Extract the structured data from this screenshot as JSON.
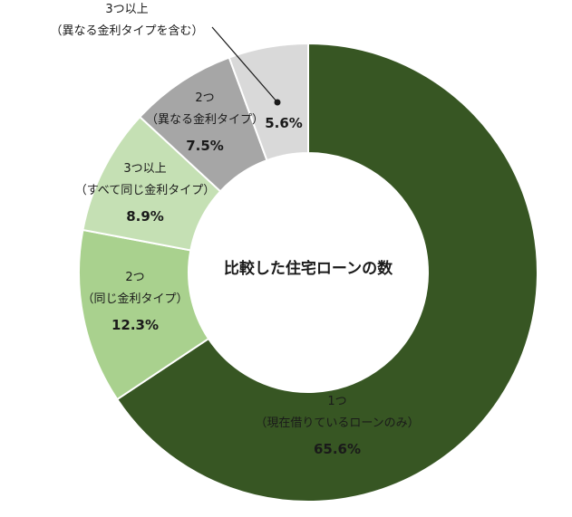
{
  "chart_data": {
    "type": "pie",
    "center_label": "比較した住宅ローンの数",
    "slices": [
      {
        "label_line1": "1つ",
        "label_line2": "（現在借りているローンのみ）",
        "value": 65.6,
        "value_label": "65.6%",
        "color": "#375623",
        "text_color": "#ffffff"
      },
      {
        "label_line1": "2つ",
        "label_line2": "（同じ金利タイプ）",
        "value": 12.3,
        "value_label": "12.3%",
        "color": "#a9d18e",
        "text_color": "#1a1a1a"
      },
      {
        "label_line1": "3つ以上",
        "label_line2": "（すべて同じ金利タイプ）",
        "value": 8.9,
        "value_label": "8.9%",
        "color": "#c5e0b4",
        "text_color": "#1a1a1a"
      },
      {
        "label_line1": "2つ",
        "label_line2": "（異なる金利タイプ）",
        "value": 7.5,
        "value_label": "7.5%",
        "color": "#a6a6a6",
        "text_color": "#1a1a1a"
      },
      {
        "label_line1": "3つ以上",
        "label_line2": "（異なる金利タイプを含む）",
        "value": 5.6,
        "value_label": "5.6%",
        "color": "#d9d9d9",
        "text_color": "#1a1a1a"
      }
    ]
  }
}
